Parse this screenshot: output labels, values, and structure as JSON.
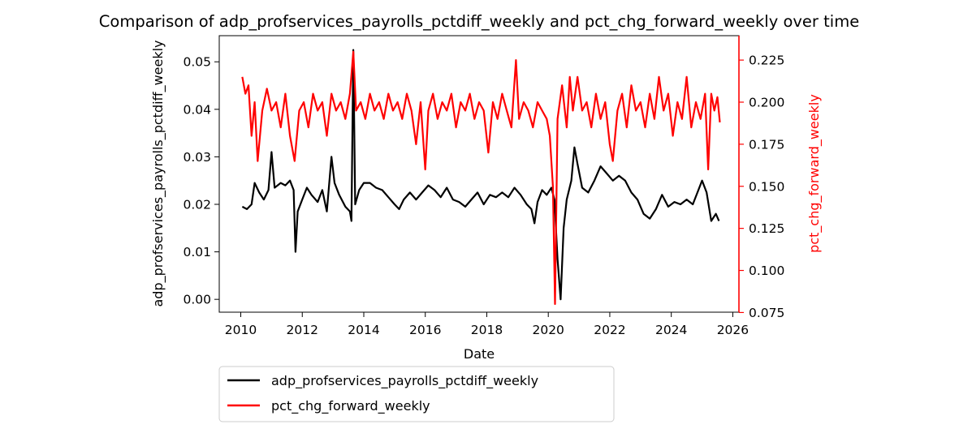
{
  "chart_data": {
    "type": "line",
    "title": "Comparison of adp_profservices_payrolls_pctdiff_weekly and pct_chg_forward_weekly over time",
    "xlabel": "Date",
    "ylabel_left": "adp_profservices_payrolls_pctdiff_weekly",
    "ylabel_right": "pct_chg_forward_weekly",
    "xlim": [
      2009.3,
      2026.2
    ],
    "ylim_left": [
      -0.0027,
      0.0555
    ],
    "ylim_right": [
      0.0752,
      0.2395
    ],
    "x_ticks": [
      2010,
      2012,
      2014,
      2016,
      2018,
      2020,
      2022,
      2024,
      2026
    ],
    "y_ticks_left": [
      0.0,
      0.01,
      0.02,
      0.03,
      0.04,
      0.05
    ],
    "y_ticks_right": [
      0.075,
      0.1,
      0.125,
      0.15,
      0.175,
      0.2,
      0.225
    ],
    "legend_placement": "below-left",
    "grid": false,
    "series": [
      {
        "name": "adp_profservices_payrolls_pctdiff_weekly",
        "axis": "left",
        "color": "#000000",
        "points": [
          [
            2010.05,
            0.0195
          ],
          [
            2010.2,
            0.019
          ],
          [
            2010.35,
            0.02
          ],
          [
            2010.45,
            0.0245
          ],
          [
            2010.6,
            0.0225
          ],
          [
            2010.75,
            0.021
          ],
          [
            2010.9,
            0.023
          ],
          [
            2011.0,
            0.031
          ],
          [
            2011.1,
            0.0235
          ],
          [
            2011.3,
            0.0245
          ],
          [
            2011.45,
            0.024
          ],
          [
            2011.6,
            0.025
          ],
          [
            2011.72,
            0.023
          ],
          [
            2011.78,
            0.01
          ],
          [
            2011.85,
            0.0185
          ],
          [
            2012.0,
            0.021
          ],
          [
            2012.15,
            0.0235
          ],
          [
            2012.3,
            0.022
          ],
          [
            2012.5,
            0.0205
          ],
          [
            2012.65,
            0.023
          ],
          [
            2012.8,
            0.0185
          ],
          [
            2012.95,
            0.03
          ],
          [
            2013.05,
            0.0245
          ],
          [
            2013.2,
            0.022
          ],
          [
            2013.4,
            0.0195
          ],
          [
            2013.55,
            0.0185
          ],
          [
            2013.6,
            0.0165
          ],
          [
            2013.66,
            0.0525
          ],
          [
            2013.72,
            0.02
          ],
          [
            2013.85,
            0.023
          ],
          [
            2014.0,
            0.0245
          ],
          [
            2014.2,
            0.0245
          ],
          [
            2014.4,
            0.0235
          ],
          [
            2014.6,
            0.023
          ],
          [
            2014.8,
            0.0215
          ],
          [
            2015.0,
            0.02
          ],
          [
            2015.15,
            0.019
          ],
          [
            2015.3,
            0.021
          ],
          [
            2015.5,
            0.0225
          ],
          [
            2015.7,
            0.021
          ],
          [
            2015.9,
            0.0225
          ],
          [
            2016.1,
            0.024
          ],
          [
            2016.3,
            0.023
          ],
          [
            2016.5,
            0.0215
          ],
          [
            2016.7,
            0.0235
          ],
          [
            2016.9,
            0.021
          ],
          [
            2017.1,
            0.0205
          ],
          [
            2017.3,
            0.0195
          ],
          [
            2017.5,
            0.021
          ],
          [
            2017.7,
            0.0225
          ],
          [
            2017.9,
            0.02
          ],
          [
            2018.1,
            0.022
          ],
          [
            2018.3,
            0.0215
          ],
          [
            2018.5,
            0.0225
          ],
          [
            2018.7,
            0.0215
          ],
          [
            2018.9,
            0.0235
          ],
          [
            2019.1,
            0.022
          ],
          [
            2019.3,
            0.02
          ],
          [
            2019.45,
            0.019
          ],
          [
            2019.55,
            0.016
          ],
          [
            2019.65,
            0.0205
          ],
          [
            2019.8,
            0.023
          ],
          [
            2019.95,
            0.022
          ],
          [
            2020.1,
            0.0235
          ],
          [
            2020.2,
            0.021
          ],
          [
            2020.3,
            0.0085
          ],
          [
            2020.4,
            0.0
          ],
          [
            2020.5,
            0.015
          ],
          [
            2020.6,
            0.021
          ],
          [
            2020.75,
            0.025
          ],
          [
            2020.85,
            0.032
          ],
          [
            2020.95,
            0.0285
          ],
          [
            2021.1,
            0.0235
          ],
          [
            2021.3,
            0.0225
          ],
          [
            2021.5,
            0.025
          ],
          [
            2021.7,
            0.028
          ],
          [
            2021.9,
            0.0265
          ],
          [
            2022.1,
            0.025
          ],
          [
            2022.3,
            0.026
          ],
          [
            2022.5,
            0.025
          ],
          [
            2022.7,
            0.0225
          ],
          [
            2022.9,
            0.021
          ],
          [
            2023.1,
            0.018
          ],
          [
            2023.3,
            0.017
          ],
          [
            2023.5,
            0.019
          ],
          [
            2023.7,
            0.022
          ],
          [
            2023.9,
            0.0195
          ],
          [
            2024.1,
            0.0205
          ],
          [
            2024.3,
            0.02
          ],
          [
            2024.5,
            0.021
          ],
          [
            2024.7,
            0.02
          ],
          [
            2024.85,
            0.0225
          ],
          [
            2025.0,
            0.025
          ],
          [
            2025.15,
            0.0225
          ],
          [
            2025.3,
            0.0165
          ],
          [
            2025.45,
            0.018
          ],
          [
            2025.55,
            0.0165
          ]
        ]
      },
      {
        "name": "pct_chg_forward_weekly",
        "axis": "right",
        "color": "#ff0000",
        "points": [
          [
            2010.05,
            0.215
          ],
          [
            2010.15,
            0.205
          ],
          [
            2010.25,
            0.21
          ],
          [
            2010.35,
            0.18
          ],
          [
            2010.45,
            0.2
          ],
          [
            2010.55,
            0.165
          ],
          [
            2010.7,
            0.195
          ],
          [
            2010.85,
            0.208
          ],
          [
            2011.0,
            0.195
          ],
          [
            2011.15,
            0.2
          ],
          [
            2011.3,
            0.185
          ],
          [
            2011.45,
            0.205
          ],
          [
            2011.6,
            0.18
          ],
          [
            2011.75,
            0.165
          ],
          [
            2011.9,
            0.195
          ],
          [
            2012.05,
            0.2
          ],
          [
            2012.2,
            0.185
          ],
          [
            2012.35,
            0.205
          ],
          [
            2012.5,
            0.195
          ],
          [
            2012.65,
            0.2
          ],
          [
            2012.8,
            0.18
          ],
          [
            2012.95,
            0.205
          ],
          [
            2013.1,
            0.195
          ],
          [
            2013.25,
            0.2
          ],
          [
            2013.4,
            0.19
          ],
          [
            2013.55,
            0.205
          ],
          [
            2013.66,
            0.23
          ],
          [
            2013.75,
            0.195
          ],
          [
            2013.9,
            0.2
          ],
          [
            2014.05,
            0.19
          ],
          [
            2014.2,
            0.205
          ],
          [
            2014.35,
            0.195
          ],
          [
            2014.5,
            0.2
          ],
          [
            2014.65,
            0.19
          ],
          [
            2014.8,
            0.205
          ],
          [
            2014.95,
            0.195
          ],
          [
            2015.1,
            0.2
          ],
          [
            2015.25,
            0.19
          ],
          [
            2015.4,
            0.205
          ],
          [
            2015.55,
            0.195
          ],
          [
            2015.7,
            0.175
          ],
          [
            2015.85,
            0.2
          ],
          [
            2016.0,
            0.16
          ],
          [
            2016.1,
            0.195
          ],
          [
            2016.25,
            0.205
          ],
          [
            2016.4,
            0.19
          ],
          [
            2016.55,
            0.2
          ],
          [
            2016.7,
            0.195
          ],
          [
            2016.85,
            0.205
          ],
          [
            2017.0,
            0.185
          ],
          [
            2017.15,
            0.2
          ],
          [
            2017.3,
            0.195
          ],
          [
            2017.45,
            0.205
          ],
          [
            2017.6,
            0.19
          ],
          [
            2017.75,
            0.2
          ],
          [
            2017.9,
            0.195
          ],
          [
            2018.05,
            0.17
          ],
          [
            2018.2,
            0.2
          ],
          [
            2018.35,
            0.19
          ],
          [
            2018.5,
            0.205
          ],
          [
            2018.65,
            0.195
          ],
          [
            2018.8,
            0.185
          ],
          [
            2018.95,
            0.225
          ],
          [
            2019.05,
            0.19
          ],
          [
            2019.2,
            0.2
          ],
          [
            2019.35,
            0.195
          ],
          [
            2019.5,
            0.185
          ],
          [
            2019.65,
            0.2
          ],
          [
            2019.8,
            0.195
          ],
          [
            2019.95,
            0.19
          ],
          [
            2020.05,
            0.18
          ],
          [
            2020.15,
            0.15
          ],
          [
            2020.22,
            0.08
          ],
          [
            2020.3,
            0.19
          ],
          [
            2020.45,
            0.21
          ],
          [
            2020.6,
            0.185
          ],
          [
            2020.7,
            0.215
          ],
          [
            2020.8,
            0.195
          ],
          [
            2020.95,
            0.215
          ],
          [
            2021.1,
            0.195
          ],
          [
            2021.25,
            0.2
          ],
          [
            2021.4,
            0.185
          ],
          [
            2021.55,
            0.205
          ],
          [
            2021.7,
            0.19
          ],
          [
            2021.85,
            0.2
          ],
          [
            2022.0,
            0.175
          ],
          [
            2022.1,
            0.165
          ],
          [
            2022.25,
            0.195
          ],
          [
            2022.4,
            0.205
          ],
          [
            2022.55,
            0.185
          ],
          [
            2022.7,
            0.21
          ],
          [
            2022.85,
            0.195
          ],
          [
            2023.0,
            0.2
          ],
          [
            2023.15,
            0.185
          ],
          [
            2023.3,
            0.205
          ],
          [
            2023.45,
            0.19
          ],
          [
            2023.6,
            0.215
          ],
          [
            2023.75,
            0.195
          ],
          [
            2023.9,
            0.205
          ],
          [
            2024.05,
            0.18
          ],
          [
            2024.2,
            0.2
          ],
          [
            2024.35,
            0.19
          ],
          [
            2024.5,
            0.215
          ],
          [
            2024.65,
            0.185
          ],
          [
            2024.8,
            0.2
          ],
          [
            2024.95,
            0.19
          ],
          [
            2025.1,
            0.205
          ],
          [
            2025.2,
            0.16
          ],
          [
            2025.3,
            0.205
          ],
          [
            2025.4,
            0.195
          ],
          [
            2025.5,
            0.203
          ],
          [
            2025.58,
            0.188
          ]
        ]
      }
    ]
  }
}
